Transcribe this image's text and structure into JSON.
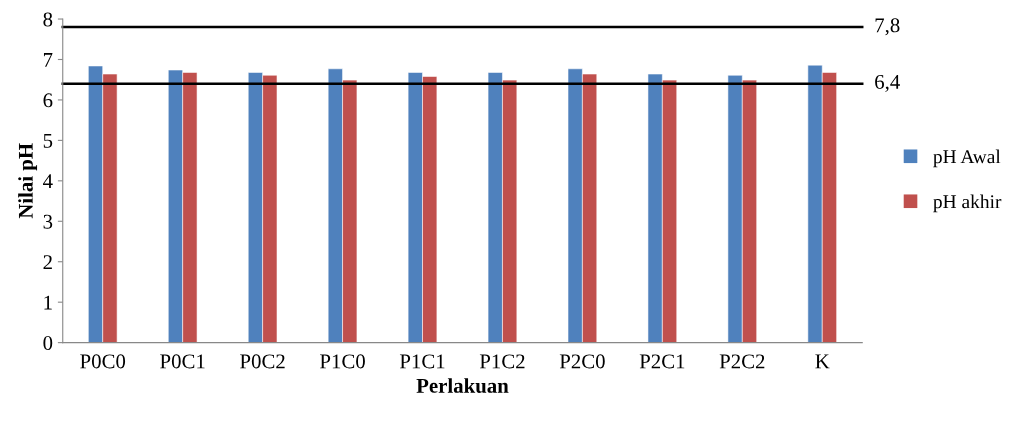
{
  "chart_data": {
    "type": "bar",
    "xlabel": "Perlakuan",
    "ylabel": "Nilai pH",
    "categories": [
      "P0C0",
      "P0C1",
      "P0C2",
      "P1C0",
      "P1C1",
      "P1C2",
      "P2C0",
      "P2C1",
      "P2C2",
      "K"
    ],
    "series": [
      {
        "name": "pH Awal",
        "color": "#4f81bd",
        "values": [
          6.84,
          6.74,
          6.68,
          6.77,
          6.68,
          6.68,
          6.77,
          6.64,
          6.61,
          6.86
        ]
      },
      {
        "name": "pH akhir",
        "color": "#c0504d",
        "values": [
          6.64,
          6.68,
          6.61,
          6.49,
          6.58,
          6.49,
          6.64,
          6.49,
          6.49,
          6.68
        ]
      }
    ],
    "ylim": [
      0,
      8
    ],
    "yticks": [
      0,
      1,
      2,
      3,
      4,
      5,
      6,
      7,
      8
    ],
    "ref_lines": [
      {
        "axis": "y",
        "value": 7.8,
        "label": "7,8",
        "color": "#000000"
      },
      {
        "axis": "y",
        "value": 6.4,
        "label": "6,4",
        "color": "#000000"
      }
    ],
    "grid": false,
    "legend": "right"
  }
}
